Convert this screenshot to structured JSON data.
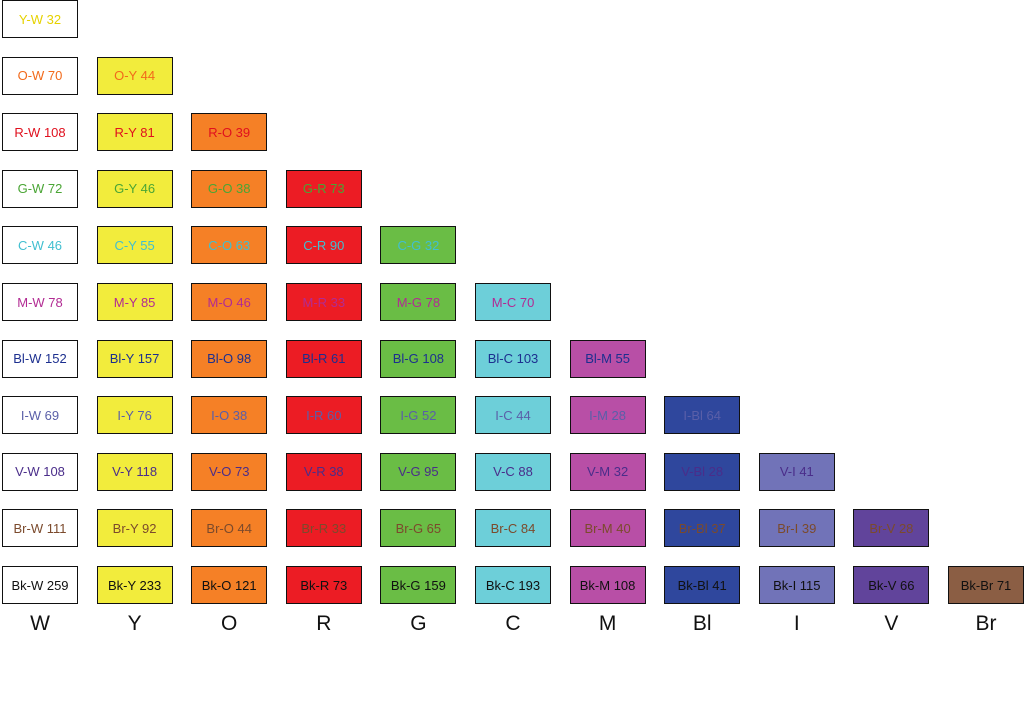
{
  "colors": {
    "W": {
      "bg": "#ffffff"
    },
    "Y": {
      "bg": "#f2ec3c"
    },
    "O": {
      "bg": "#f58026"
    },
    "R": {
      "bg": "#ec1c24"
    },
    "G": {
      "bg": "#6abd45"
    },
    "C": {
      "bg": "#6dcfd9"
    },
    "M": {
      "bg": "#b84fa6"
    },
    "Bl": {
      "bg": "#2f479d"
    },
    "I": {
      "bg": "#7173b8"
    },
    "V": {
      "bg": "#61449b"
    },
    "Br": {
      "bg": "#8b5e44"
    },
    "Bk": {
      "bg": "#111111"
    }
  },
  "text_colors": {
    "Y": "#e6d200",
    "O": "#f26a1b",
    "R": "#e0101e",
    "G": "#4aa535",
    "C": "#41bfd0",
    "M": "#b22b93",
    "Bl": "#1c2f8f",
    "I": "#5a5fa8",
    "V": "#4a2d8a",
    "Br": "#7b4a2c",
    "Bk": "#111111"
  },
  "columns": [
    "W",
    "Y",
    "O",
    "R",
    "G",
    "C",
    "M",
    "Bl",
    "I",
    "V",
    "Br"
  ],
  "rows": [
    "Y",
    "O",
    "R",
    "G",
    "C",
    "M",
    "Bl",
    "I",
    "V",
    "Br",
    "Bk"
  ],
  "labels": [
    [
      "Y-W 32"
    ],
    [
      "O-W 70",
      "O-Y 44"
    ],
    [
      "R-W 108",
      "R-Y 81",
      "R-O 39"
    ],
    [
      "G-W 72",
      "G-Y 46",
      "G-O 38",
      "G-R 73"
    ],
    [
      "C-W 46",
      "C-Y 55",
      "C-O 63",
      "C-R 90",
      "C-G 32"
    ],
    [
      "M-W 78",
      "M-Y 85",
      "M-O 46",
      "M-R 33",
      "M-G 78",
      "M-C 70"
    ],
    [
      "Bl-W 152",
      "Bl-Y 157",
      "Bl-O 98",
      "Bl-R 61",
      "Bl-G 108",
      "Bl-C 103",
      "Bl-M 55"
    ],
    [
      "I-W 69",
      "I-Y 76",
      "I-O 38",
      "I-R 60",
      "I-G 52",
      "I-C 44",
      "I-M 28",
      "I-Bl 64"
    ],
    [
      "V-W 108",
      "V-Y 118",
      "V-O 73",
      "V-R 38",
      "V-G 95",
      "V-C 88",
      "V-M 32",
      "V-Bl 28",
      "V-I 41"
    ],
    [
      "Br-W 111",
      "Br-Y 92",
      "Br-O 44",
      "Br-R 33",
      "Br-G 65",
      "Br-C 84",
      "Br-M 40",
      "Br-Bl 37",
      "Br-I 39",
      "Br-V 28"
    ],
    [
      "Bk-W 259",
      "Bk-Y 233",
      "Bk-O 121",
      "Bk-R 73",
      "Bk-G 159",
      "Bk-C 193",
      "Bk-M 108",
      "Bk-Bl 41",
      "Bk-I 115",
      "Bk-V 66",
      "Bk-Br 71"
    ]
  ]
}
